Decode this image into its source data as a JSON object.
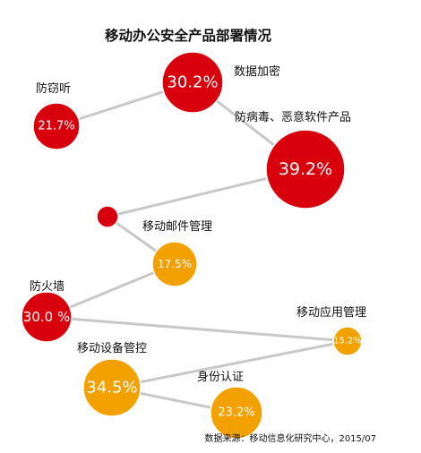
{
  "chart_data": {
    "type": "bubble-chain",
    "title": "移动办公安全产品部署情况",
    "source": "数据来源：移动信息化研究中心，2015/07",
    "colors": {
      "red": "#d9000d",
      "orange": "#f3a100",
      "connector": "#c8c8c8"
    },
    "items": [
      {
        "name": "防窃听",
        "value": 21.7,
        "value_label": "21.7%",
        "color": "red"
      },
      {
        "name": "数据加密",
        "value": 30.2,
        "value_label": "30.2%",
        "color": "red"
      },
      {
        "name": "防病毒、恶意软件产品",
        "value": 39.2,
        "value_label": "39.2%",
        "color": "red"
      },
      {
        "name": "",
        "value": null,
        "value_label": "",
        "color": "red"
      },
      {
        "name": "移动邮件管理",
        "value": 17.5,
        "value_label": "17.5%",
        "color": "orange"
      },
      {
        "name": "防火墙",
        "value": 30.0,
        "value_label": "30.0 %",
        "color": "red"
      },
      {
        "name": "移动应用管理",
        "value": 15.2,
        "value_label": "15.2%",
        "color": "orange"
      },
      {
        "name": "移动设备管控",
        "value": 34.5,
        "value_label": "34.5%",
        "color": "orange"
      },
      {
        "name": "身份认证",
        "value": 23.2,
        "value_label": "23.2%",
        "color": "orange"
      }
    ]
  }
}
